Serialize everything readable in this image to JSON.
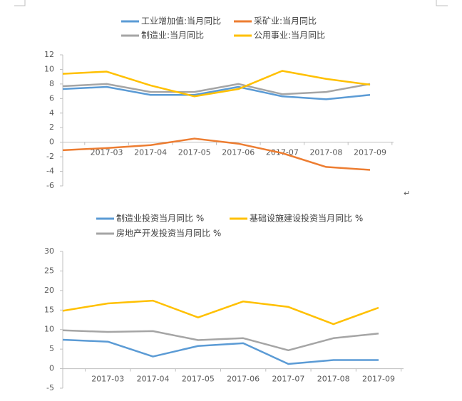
{
  "chart_data": [
    {
      "type": "line",
      "categories": [
        null,
        "2017-03",
        "2017-04",
        "2017-05",
        "2017-06",
        "2017-07",
        "2017-08",
        "2017-09"
      ],
      "ylim": [
        -6,
        12
      ],
      "yticks": [
        -6,
        -4,
        -2,
        0,
        2,
        4,
        6,
        8,
        10,
        12
      ],
      "series": [
        {
          "name": "工业增加值:当月同比",
          "color": "#5b9bd5",
          "values": [
            7.3,
            7.6,
            6.5,
            6.5,
            7.6,
            6.3,
            5.9,
            6.5
          ]
        },
        {
          "name": "采矿业:当月同比",
          "color": "#ed7d31",
          "values": [
            -1.1,
            -0.8,
            -0.4,
            0.5,
            -0.2,
            -1.5,
            -3.4,
            -3.8
          ]
        },
        {
          "name": "制造业:当月同比",
          "color": "#a5a5a5",
          "values": [
            7.7,
            8.0,
            6.9,
            6.9,
            8.0,
            6.6,
            6.9,
            8.0
          ]
        },
        {
          "name": "公用事业:当月同比",
          "color": "#ffc000",
          "values": [
            9.4,
            9.7,
            7.8,
            6.3,
            7.3,
            9.8,
            8.7,
            7.9
          ]
        }
      ]
    },
    {
      "type": "line",
      "categories": [
        null,
        "2017-03",
        "2017-04",
        "2017-05",
        "2017-06",
        "2017-07",
        "2017-08",
        "2017-09"
      ],
      "ylim": [
        -5,
        30
      ],
      "yticks": [
        -5,
        0,
        5,
        10,
        15,
        20,
        25,
        30
      ],
      "series": [
        {
          "name": "制造业投资当月同比 %",
          "color": "#5b9bd5",
          "values": [
            7.4,
            6.9,
            3.1,
            5.8,
            6.5,
            1.2,
            2.2,
            2.2
          ]
        },
        {
          "name": "基础设施建设投资当月同比 %",
          "color": "#ffc000",
          "values": [
            14.8,
            16.7,
            17.4,
            13.1,
            17.2,
            15.8,
            11.4,
            15.6
          ]
        },
        {
          "name": "房地产开发投资当月同比 %",
          "color": "#a5a5a5",
          "values": [
            9.8,
            9.4,
            9.6,
            7.3,
            7.8,
            4.7,
            7.8,
            9.0
          ]
        }
      ]
    }
  ],
  "paragraph_mark": "↵"
}
